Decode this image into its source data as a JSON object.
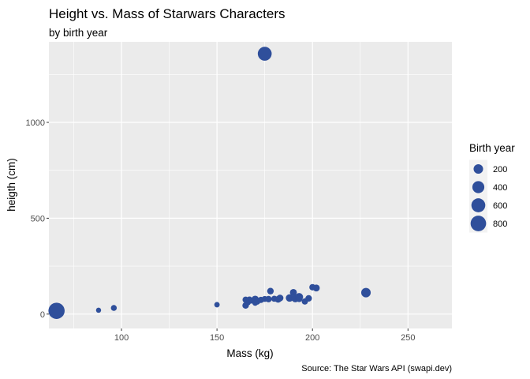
{
  "chart_data": {
    "type": "scatter",
    "title": "Height vs. Mass of Starwars Characters",
    "subtitle": "by birth year",
    "xlabel": "Mass (kg)",
    "ylabel": "heigth (cm)",
    "caption": "Source: The Star Wars API (swapi.dev)",
    "xlim": [
      62,
      273
    ],
    "ylim": [
      -75,
      1420
    ],
    "x_ticks": [
      100,
      150,
      200,
      250
    ],
    "y_ticks": [
      0,
      500,
      1000
    ],
    "grid": true,
    "point_color": "#2f4f9b",
    "panel_color": "#ebebeb",
    "grid_color": "#ffffff",
    "legend": {
      "title": "Birth year",
      "position": "right",
      "entries": [
        {
          "label": "200",
          "size": 200
        },
        {
          "label": "400",
          "size": 400
        },
        {
          "label": "600",
          "size": 600
        },
        {
          "label": "800",
          "size": 800
        }
      ]
    },
    "points": [
      {
        "x": 66,
        "y": 17,
        "size": 896
      },
      {
        "x": 88,
        "y": 20,
        "size": 15
      },
      {
        "x": 96,
        "y": 32,
        "size": 33
      },
      {
        "x": 150,
        "y": 49,
        "size": 22
      },
      {
        "x": 165,
        "y": 45,
        "size": 52
      },
      {
        "x": 165,
        "y": 75,
        "size": 41
      },
      {
        "x": 166,
        "y": 62,
        "size": 58
      },
      {
        "x": 167,
        "y": 75,
        "size": 47
      },
      {
        "x": 168,
        "y": 70,
        "size": 31
      },
      {
        "x": 170,
        "y": 77,
        "size": 82
      },
      {
        "x": 170,
        "y": 58,
        "size": 29
      },
      {
        "x": 171,
        "y": 66,
        "size": 53
      },
      {
        "x": 173,
        "y": 74,
        "size": 40
      },
      {
        "x": 175,
        "y": 1358,
        "size": 600
      },
      {
        "x": 175,
        "y": 79,
        "size": 33
      },
      {
        "x": 177,
        "y": 78,
        "size": 48
      },
      {
        "x": 178,
        "y": 120,
        "size": 54
      },
      {
        "x": 180,
        "y": 80,
        "size": 36
      },
      {
        "x": 182,
        "y": 77,
        "size": 57
      },
      {
        "x": 183,
        "y": 84,
        "size": 62
      },
      {
        "x": 188,
        "y": 84,
        "size": 91
      },
      {
        "x": 190,
        "y": 113,
        "size": 67
      },
      {
        "x": 191,
        "y": 81,
        "size": 92
      },
      {
        "x": 193,
        "y": 89,
        "size": 112
      },
      {
        "x": 193,
        "y": 80,
        "size": 58
      },
      {
        "x": 196,
        "y": 66,
        "size": 43
      },
      {
        "x": 198,
        "y": 82,
        "size": 52
      },
      {
        "x": 200,
        "y": 140,
        "size": 47
      },
      {
        "x": 202,
        "y": 136,
        "size": 64
      },
      {
        "x": 228,
        "y": 112,
        "size": 200
      }
    ]
  }
}
